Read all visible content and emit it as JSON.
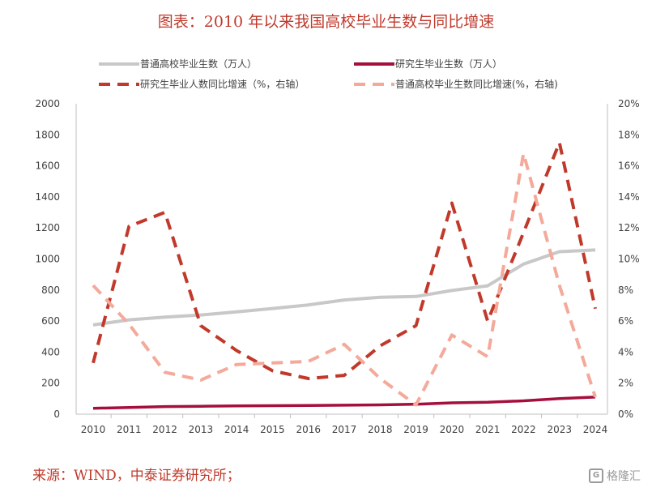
{
  "title": "图表：2010 年以来我国高校毕业生数与同比增速",
  "source": "来源：WIND，中泰证券研究所；",
  "watermark": "格隆汇",
  "chart_data": {
    "type": "line",
    "x": [
      "2010",
      "2011",
      "2012",
      "2013",
      "2014",
      "2015",
      "2016",
      "2017",
      "2018",
      "2019",
      "2020",
      "2021",
      "2022",
      "2023",
      "2024"
    ],
    "y_left": {
      "lim": [
        0,
        2000
      ],
      "ticks": [
        "0",
        "200",
        "400",
        "600",
        "800",
        "1000",
        "1200",
        "1400",
        "1600",
        "1800",
        "2000"
      ]
    },
    "y_right": {
      "lim": [
        0,
        20
      ],
      "ticks": [
        "0%",
        "2%",
        "4%",
        "6%",
        "8%",
        "10%",
        "12%",
        "14%",
        "16%",
        "18%",
        "20%"
      ]
    },
    "grid": false,
    "legend_position": "top",
    "series": [
      {
        "name": "普通高校毕业生数（万人）",
        "axis": "left",
        "style": "solid",
        "color": "#c8c8c8",
        "values": [
          575,
          608,
          625,
          639,
          659,
          681,
          704,
          736,
          753,
          758,
          797,
          827,
          967,
          1047,
          1058
        ]
      },
      {
        "name": "研究生毕业生数（万人）",
        "axis": "left",
        "style": "solid",
        "color": "#a50f3c",
        "values": [
          38,
          43,
          49,
          51,
          54,
          55,
          56,
          58,
          60,
          64,
          73,
          77,
          86,
          101,
          110
        ]
      },
      {
        "name": "研究生毕业人数同比增速（%，右轴）",
        "axis": "right",
        "style": "dash",
        "color": "#c0392b",
        "values": [
          3.3,
          12.1,
          13.0,
          5.7,
          4.1,
          2.8,
          2.3,
          2.5,
          4.4,
          5.7,
          13.6,
          6.0,
          11.7,
          17.5,
          6.8
        ]
      },
      {
        "name": "普通高校毕业生数同比增速(%，右轴)",
        "axis": "right",
        "style": "dash",
        "color": "#f4a99a",
        "values": [
          8.3,
          5.8,
          2.7,
          2.2,
          3.2,
          3.3,
          3.4,
          4.5,
          2.3,
          0.6,
          5.1,
          3.7,
          16.8,
          8.3,
          1.1
        ]
      }
    ]
  }
}
